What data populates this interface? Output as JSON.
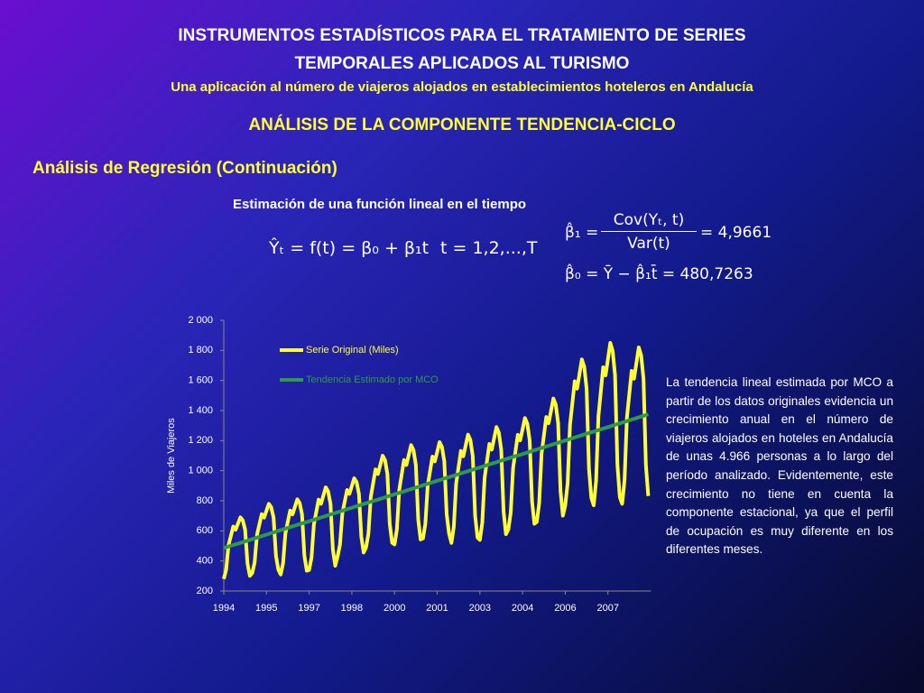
{
  "header": {
    "title_lines": [
      "INSTRUMENTOS ESTADÍSTICOS PARA EL TRATAMIENTO DE SERIES",
      "TEMPORALES APLICADOS AL TURISMO"
    ],
    "subtitle": "Una aplicación al número de viajeros alojados en establecimientos hoteleros en Andalucía",
    "section": "ANÁLISIS DE LA COMPONENTE TENDENCIA-CICLO",
    "subsection": "Análisis de Regresión (Continuación)"
  },
  "caption": "Estimación de una función lineal en el tiempo",
  "formulas": {
    "model": "Ŷₜ = f(t) = β₀ + β₁t",
    "index": "t = 1,2,...,T",
    "beta1_lhs": "β̂₁ =",
    "beta1_num": "Cov(Yₜ, t)",
    "beta1_den": "Var(t)",
    "beta1_rhs": "= 4,9661",
    "beta0": "β̂₀ = Ȳ − β̂₁t̄ = 480,7263"
  },
  "paragraph": "La tendencia lineal estimada por MCO a partir de los datos originales evidencia un crecimiento anual en el número de viajeros alojados en hoteles en Andalucía de unas 4.966 personas a lo largo del período analizado. Evidentemente, este crecimiento no tiene en cuenta la componente estacional, ya que el perfil de ocupación es muy diferente en los diferentes meses.",
  "chart_data": {
    "type": "line",
    "y_label": "Miles de Viajeros",
    "legend": "upper left",
    "ylim": [
      200,
      2000
    ],
    "yticks": [
      200,
      400,
      600,
      800,
      {
        "value": 1000,
        "label": "1 000"
      },
      {
        "value": 1200,
        "label": "1 200"
      },
      {
        "value": 1400,
        "label": "1 400"
      },
      {
        "value": 1600,
        "label": "1 600"
      },
      {
        "value": 1800,
        "label": "1 800"
      },
      {
        "value": 2000,
        "label": "2 000"
      }
    ],
    "categories": [
      "1994",
      null,
      null,
      null,
      null,
      null,
      null,
      null,
      null,
      null,
      null,
      null,
      null,
      null,
      null,
      null,
      null,
      null,
      "1995",
      null,
      null,
      null,
      null,
      null,
      null,
      null,
      null,
      null,
      null,
      null,
      null,
      null,
      null,
      null,
      null,
      null,
      "1997",
      null,
      null,
      null,
      null,
      null,
      null,
      null,
      null,
      null,
      null,
      null,
      null,
      null,
      null,
      null,
      null,
      null,
      "1998",
      null,
      null,
      null,
      null,
      null,
      null,
      null,
      null,
      null,
      null,
      null,
      null,
      null,
      null,
      null,
      null,
      null,
      "2000",
      null,
      null,
      null,
      null,
      null,
      null,
      null,
      null,
      null,
      null,
      null,
      null,
      null,
      null,
      null,
      null,
      null,
      "2001",
      null,
      null,
      null,
      null,
      null,
      null,
      null,
      null,
      null,
      null,
      null,
      null,
      null,
      null,
      null,
      null,
      null,
      "2003",
      null,
      null,
      null,
      null,
      null,
      null,
      null,
      null,
      null,
      null,
      null,
      null,
      null,
      null,
      null,
      null,
      null,
      "2004",
      null,
      null,
      null,
      null,
      null,
      null,
      null,
      null,
      null,
      null,
      null,
      null,
      null,
      null,
      null,
      null,
      null,
      "2006",
      null,
      null,
      null,
      null,
      null,
      null,
      null,
      null,
      null,
      null,
      null,
      null,
      null,
      null,
      null,
      null,
      null,
      "2007",
      null,
      null,
      null,
      null,
      null,
      null,
      null,
      null,
      null,
      null,
      null,
      null,
      null,
      null,
      null,
      null,
      null
    ],
    "series": [
      {
        "name": "Serie Original (Miles)",
        "color": "#ffff33",
        "values": [
          280,
          342,
          506,
          567,
          629,
          608,
          649,
          690,
          670,
          608,
          383,
          301,
          320,
          389,
          573,
          642,
          711,
          688,
          734,
          780,
          757,
          688,
          435,
          343,
          310,
          385,
          585,
          660,
          735,
          710,
          760,
          810,
          785,
          710,
          435,
          335,
          340,
          423,
          643,
          725,
          808,
          780,
          835,
          890,
          863,
          780,
          478,
          368,
          430,
          508,
          716,
          794,
          872,
          846,
          898,
          950,
          924,
          846,
          560,
          456,
          490,
          582,
          826,
          917,
          1009,
          978,
          1039,
          1100,
          1070,
          978,
          643,
          521,
          510,
          609,
          873,
          972,
          1071,
          1038,
          1104,
          1170,
          1137,
          1038,
          675,
          543,
          550,
          646,
          902,
          998,
          1094,
          1062,
          1126,
          1190,
          1158,
          1062,
          710,
          582,
          520,
          628,
          916,
          1024,
          1132,
          1096,
          1168,
          1240,
          1204,
          1096,
          700,
          556,
          540,
          653,
          953,
          1065,
          1178,
          1140,
          1215,
          1290,
          1253,
          1140,
          728,
          578,
          610,
          721,
          1017,
          1128,
          1239,
          1202,
          1276,
          1350,
          1313,
          1202,
          795,
          647,
          660,
          783,
          1111,
          1234,
          1357,
          1316,
          1398,
          1480,
          1439,
          1316,
          865,
          701,
          770,
          916,
          1304,
          1449,
          1595,
          1546,
          1643,
          1740,
          1692,
          1546,
          1013,
          819,
          770,
          932,
          1364,
          1526,
          1688,
          1634,
          1742,
          1850,
          1796,
          1634,
          1040,
          824,
          780,
          936,
          1352,
          1508,
          1664,
          1612,
          1716,
          1820,
          1768,
          1612,
          1040,
          832
        ]
      },
      {
        "name": "Tendencia Estimado por MCO",
        "color": "#2e9a47",
        "values": [
          486,
          491,
          496,
          501,
          506,
          511,
          515,
          520,
          525,
          530,
          535,
          540,
          545,
          550,
          555,
          560,
          565,
          570,
          575,
          580,
          585,
          590,
          595,
          600,
          605,
          610,
          615,
          620,
          625,
          630,
          635,
          640,
          645,
          650,
          655,
          659,
          664,
          669,
          674,
          679,
          684,
          689,
          694,
          699,
          704,
          709,
          714,
          719,
          724,
          729,
          734,
          739,
          744,
          749,
          754,
          759,
          764,
          769,
          774,
          779,
          784,
          789,
          794,
          799,
          803,
          808,
          813,
          818,
          823,
          828,
          833,
          838,
          843,
          848,
          853,
          858,
          863,
          868,
          873,
          878,
          883,
          888,
          893,
          898,
          903,
          908,
          913,
          918,
          923,
          928,
          933,
          938,
          943,
          948,
          953,
          957,
          962,
          967,
          972,
          977,
          982,
          987,
          992,
          997,
          1002,
          1007,
          1012,
          1017,
          1022,
          1027,
          1032,
          1037,
          1042,
          1047,
          1052,
          1057,
          1062,
          1067,
          1072,
          1077,
          1082,
          1087,
          1092,
          1097,
          1102,
          1106,
          1111,
          1116,
          1121,
          1126,
          1131,
          1136,
          1141,
          1146,
          1151,
          1156,
          1161,
          1166,
          1171,
          1176,
          1181,
          1186,
          1191,
          1196,
          1201,
          1206,
          1211,
          1216,
          1221,
          1226,
          1231,
          1236,
          1241,
          1246,
          1251,
          1255,
          1260,
          1265,
          1270,
          1275,
          1280,
          1285,
          1290,
          1295,
          1300,
          1305,
          1310,
          1315,
          1320,
          1325,
          1330,
          1335,
          1340,
          1345,
          1350,
          1355,
          1360,
          1365,
          1370,
          1375
        ]
      }
    ]
  }
}
